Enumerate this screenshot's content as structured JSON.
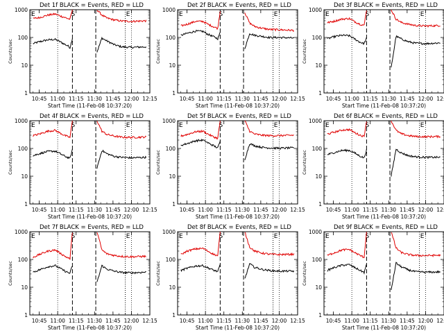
{
  "figure": {
    "xlabel": "Start Time (11-Feb-08 10:37:20)",
    "ylabel": "Counts/sec",
    "y_ticks": [
      "1",
      "10",
      "100",
      "1000"
    ],
    "x_ticks": [
      "10:45",
      "11:00",
      "11:15",
      "11:30",
      "11:45",
      "12:00",
      "12:15"
    ],
    "time_markers": [
      {
        "label": "S",
        "time": "11:12",
        "line": "dashed"
      },
      {
        "label": "S",
        "time": "11:31",
        "line": "dashed"
      },
      {
        "label": "E",
        "time": "11:55",
        "line": "dotted"
      }
    ],
    "colors": {
      "events": "#000000",
      "lld": "#e00000"
    }
  },
  "chart_data": [
    {
      "type": "line",
      "title": "Det 1f BLACK = Events, RED = LLD",
      "ylim": [
        1,
        1000
      ],
      "yscale": "log",
      "series": [
        {
          "name": "Events",
          "color": "#000000",
          "x": [
            "10:40",
            "10:45",
            "10:52",
            "10:58",
            "11:02",
            "11:06",
            "11:09",
            "11:10",
            "11:12",
            "11:32",
            "11:36",
            "11:40",
            "11:46",
            "11:52",
            "12:00",
            "12:06",
            "12:12"
          ],
          "values": [
            60,
            70,
            82,
            85,
            70,
            56,
            48,
            42,
            95,
            30,
            95,
            75,
            55,
            46,
            44,
            45,
            46
          ]
        },
        {
          "name": "LLD",
          "color": "#e00000",
          "x": [
            "10:40",
            "10:45",
            "10:52",
            "10:58",
            "11:02",
            "11:06",
            "11:09",
            "11:10",
            "11:12",
            "11:32",
            "11:36",
            "11:40",
            "11:46",
            "11:52",
            "12:00",
            "12:06",
            "12:12"
          ],
          "values": [
            480,
            520,
            640,
            700,
            600,
            520,
            470,
            450,
            1000,
            1000,
            640,
            500,
            430,
            390,
            380,
            390,
            400
          ]
        }
      ]
    },
    {
      "type": "line",
      "title": "Det 2f BLACK = Events, RED = LLD",
      "ylim": [
        1,
        1000
      ],
      "yscale": "log",
      "series": [
        {
          "name": "Events",
          "color": "#000000",
          "x": [
            "10:40",
            "10:45",
            "10:52",
            "10:58",
            "11:02",
            "11:06",
            "11:09",
            "11:10",
            "11:12",
            "11:32",
            "11:36",
            "11:40",
            "11:46",
            "11:52",
            "12:00",
            "12:06",
            "12:12"
          ],
          "values": [
            120,
            140,
            170,
            165,
            130,
            110,
            95,
            90,
            150,
            40,
            140,
            120,
            110,
            100,
            100,
            98,
            95
          ]
        },
        {
          "name": "LLD",
          "color": "#e00000",
          "x": [
            "10:40",
            "10:45",
            "10:52",
            "10:58",
            "11:02",
            "11:06",
            "11:09",
            "11:10",
            "11:12",
            "11:32",
            "11:36",
            "11:40",
            "11:46",
            "11:52",
            "12:00",
            "12:06",
            "12:12"
          ],
          "values": [
            260,
            300,
            380,
            380,
            300,
            250,
            220,
            210,
            900,
            800,
            330,
            250,
            215,
            195,
            190,
            185,
            180
          ]
        }
      ]
    },
    {
      "type": "line",
      "title": "Det 3f BLACK = Events, RED = LLD",
      "ylim": [
        1,
        1000
      ],
      "yscale": "log",
      "series": [
        {
          "name": "Events",
          "color": "#000000",
          "x": [
            "10:40",
            "10:45",
            "10:52",
            "10:58",
            "11:02",
            "11:06",
            "11:09",
            "11:10",
            "11:12",
            "11:32",
            "11:36",
            "11:40",
            "11:46",
            "11:52",
            "12:00",
            "12:06",
            "12:12"
          ],
          "values": [
            90,
            105,
            120,
            115,
            90,
            70,
            62,
            60,
            95,
            8,
            110,
            90,
            70,
            62,
            60,
            62,
            64
          ]
        },
        {
          "name": "LLD",
          "color": "#e00000",
          "x": [
            "10:40",
            "10:45",
            "10:52",
            "10:58",
            "11:02",
            "11:06",
            "11:09",
            "11:10",
            "11:12",
            "11:32",
            "11:36",
            "11:40",
            "11:46",
            "11:52",
            "12:00",
            "12:06",
            "12:12"
          ],
          "values": [
            340,
            380,
            460,
            480,
            380,
            310,
            280,
            270,
            1000,
            1000,
            460,
            350,
            300,
            270,
            260,
            265,
            270
          ]
        }
      ]
    },
    {
      "type": "line",
      "title": "Det 4f BLACK = Events, RED = LLD",
      "ylim": [
        1,
        1000
      ],
      "yscale": "log",
      "series": [
        {
          "name": "Events",
          "color": "#000000",
          "x": [
            "10:40",
            "10:45",
            "10:52",
            "10:58",
            "11:02",
            "11:06",
            "11:09",
            "11:10",
            "11:12",
            "11:32",
            "11:36",
            "11:40",
            "11:46",
            "11:52",
            "12:00",
            "12:06",
            "12:12"
          ],
          "values": [
            55,
            65,
            78,
            80,
            65,
            52,
            46,
            44,
            90,
            20,
            85,
            65,
            52,
            48,
            46,
            47,
            48
          ]
        },
        {
          "name": "LLD",
          "color": "#e00000",
          "x": [
            "10:40",
            "10:45",
            "10:52",
            "10:58",
            "11:02",
            "11:06",
            "11:09",
            "11:10",
            "11:12",
            "11:32",
            "11:36",
            "11:40",
            "11:46",
            "11:52",
            "12:00",
            "12:06",
            "12:12"
          ],
          "values": [
            290,
            330,
            420,
            450,
            360,
            290,
            260,
            250,
            1000,
            1000,
            420,
            320,
            280,
            255,
            250,
            255,
            260
          ]
        }
      ]
    },
    {
      "type": "line",
      "title": "Det 5f BLACK = Events, RED = LLD",
      "ylim": [
        1,
        1000
      ],
      "yscale": "log",
      "series": [
        {
          "name": "Events",
          "color": "#000000",
          "x": [
            "10:40",
            "10:45",
            "10:52",
            "10:58",
            "11:02",
            "11:06",
            "11:09",
            "11:10",
            "11:12",
            "11:32",
            "11:36",
            "11:40",
            "11:46",
            "11:52",
            "12:00",
            "12:06",
            "12:12"
          ],
          "values": [
            130,
            150,
            190,
            200,
            160,
            130,
            110,
            105,
            180,
            40,
            150,
            125,
            110,
            105,
            102,
            104,
            105
          ]
        },
        {
          "name": "LLD",
          "color": "#e00000",
          "x": [
            "10:40",
            "10:45",
            "10:52",
            "10:58",
            "11:02",
            "11:06",
            "11:09",
            "11:10",
            "11:12",
            "11:32",
            "11:36",
            "11:40",
            "11:46",
            "11:52",
            "12:00",
            "12:06",
            "12:12"
          ],
          "values": [
            280,
            320,
            400,
            420,
            330,
            270,
            240,
            230,
            1000,
            1000,
            420,
            330,
            300,
            290,
            290,
            295,
            300
          ]
        }
      ]
    },
    {
      "type": "line",
      "title": "Det 6f BLACK = Events, RED = LLD",
      "ylim": [
        1,
        1000
      ],
      "yscale": "log",
      "series": [
        {
          "name": "Events",
          "color": "#000000",
          "x": [
            "10:40",
            "10:45",
            "10:52",
            "10:58",
            "11:02",
            "11:06",
            "11:09",
            "11:10",
            "11:12",
            "11:32",
            "11:36",
            "11:40",
            "11:46",
            "11:52",
            "12:00",
            "12:06",
            "12:12"
          ],
          "values": [
            60,
            70,
            85,
            85,
            70,
            55,
            48,
            46,
            90,
            10,
            95,
            70,
            55,
            50,
            48,
            48,
            48
          ]
        },
        {
          "name": "LLD",
          "color": "#e00000",
          "x": [
            "10:40",
            "10:45",
            "10:52",
            "10:58",
            "11:02",
            "11:06",
            "11:09",
            "11:10",
            "11:12",
            "11:32",
            "11:36",
            "11:40",
            "11:46",
            "11:52",
            "12:00",
            "12:06",
            "12:12"
          ],
          "values": [
            330,
            380,
            460,
            480,
            380,
            310,
            280,
            270,
            1000,
            1000,
            450,
            340,
            290,
            270,
            265,
            268,
            270
          ]
        }
      ]
    },
    {
      "type": "line",
      "title": "Det 7f BLACK = Events, RED = LLD",
      "ylim": [
        1,
        1000
      ],
      "yscale": "log",
      "series": [
        {
          "name": "Events",
          "color": "#000000",
          "x": [
            "10:40",
            "10:45",
            "10:52",
            "10:58",
            "11:02",
            "11:06",
            "11:09",
            "11:10",
            "11:12",
            "11:32",
            "11:36",
            "11:40",
            "11:46",
            "11:52",
            "12:00",
            "12:06",
            "12:12"
          ],
          "values": [
            35,
            42,
            55,
            60,
            48,
            38,
            33,
            32,
            60,
            15,
            60,
            45,
            38,
            34,
            33,
            34,
            35
          ]
        },
        {
          "name": "LLD",
          "color": "#e00000",
          "x": [
            "10:40",
            "10:45",
            "10:52",
            "10:58",
            "11:02",
            "11:06",
            "11:09",
            "11:10",
            "11:12",
            "11:32",
            "11:36",
            "11:40",
            "11:46",
            "11:52",
            "12:00",
            "12:06",
            "12:12"
          ],
          "values": [
            120,
            150,
            200,
            220,
            170,
            130,
            110,
            105,
            1000,
            1000,
            220,
            160,
            140,
            130,
            125,
            128,
            130
          ]
        }
      ]
    },
    {
      "type": "line",
      "title": "Det 8f BLACK = Events, RED = LLD",
      "ylim": [
        1,
        1000
      ],
      "yscale": "log",
      "series": [
        {
          "name": "Events",
          "color": "#000000",
          "x": [
            "10:40",
            "10:45",
            "10:52",
            "10:58",
            "11:02",
            "11:06",
            "11:09",
            "11:10",
            "11:12",
            "11:32",
            "11:36",
            "11:40",
            "11:46",
            "11:52",
            "12:00",
            "12:06",
            "12:12"
          ],
          "values": [
            40,
            48,
            58,
            60,
            50,
            42,
            38,
            36,
            65,
            20,
            70,
            52,
            44,
            40,
            38,
            38,
            38
          ]
        },
        {
          "name": "LLD",
          "color": "#e00000",
          "x": [
            "10:40",
            "10:45",
            "10:52",
            "10:58",
            "11:02",
            "11:06",
            "11:09",
            "11:10",
            "11:12",
            "11:32",
            "11:36",
            "11:40",
            "11:46",
            "11:52",
            "12:00",
            "12:06",
            "12:12"
          ],
          "values": [
            150,
            200,
            240,
            250,
            200,
            160,
            140,
            135,
            1000,
            1000,
            280,
            200,
            170,
            155,
            150,
            152,
            155
          ]
        }
      ]
    },
    {
      "type": "line",
      "title": "Det 9f BLACK = Events, RED = LLD",
      "ylim": [
        1,
        1000
      ],
      "yscale": "log",
      "series": [
        {
          "name": "Events",
          "color": "#000000",
          "x": [
            "10:40",
            "10:45",
            "10:52",
            "10:58",
            "11:02",
            "11:06",
            "11:09",
            "11:10",
            "11:12",
            "11:32",
            "11:36",
            "11:40",
            "11:46",
            "11:52",
            "12:00",
            "12:06",
            "12:12"
          ],
          "values": [
            40,
            50,
            62,
            65,
            52,
            42,
            36,
            34,
            65,
            8,
            75,
            55,
            42,
            36,
            35,
            35,
            36
          ]
        },
        {
          "name": "LLD",
          "color": "#e00000",
          "x": [
            "10:40",
            "10:45",
            "10:52",
            "10:58",
            "11:02",
            "11:06",
            "11:09",
            "11:10",
            "11:12",
            "11:32",
            "11:36",
            "11:40",
            "11:46",
            "11:52",
            "12:00",
            "12:06",
            "12:12"
          ],
          "values": [
            140,
            170,
            220,
            230,
            180,
            145,
            125,
            120,
            1000,
            1000,
            260,
            180,
            150,
            140,
            138,
            140,
            142
          ]
        }
      ]
    }
  ]
}
